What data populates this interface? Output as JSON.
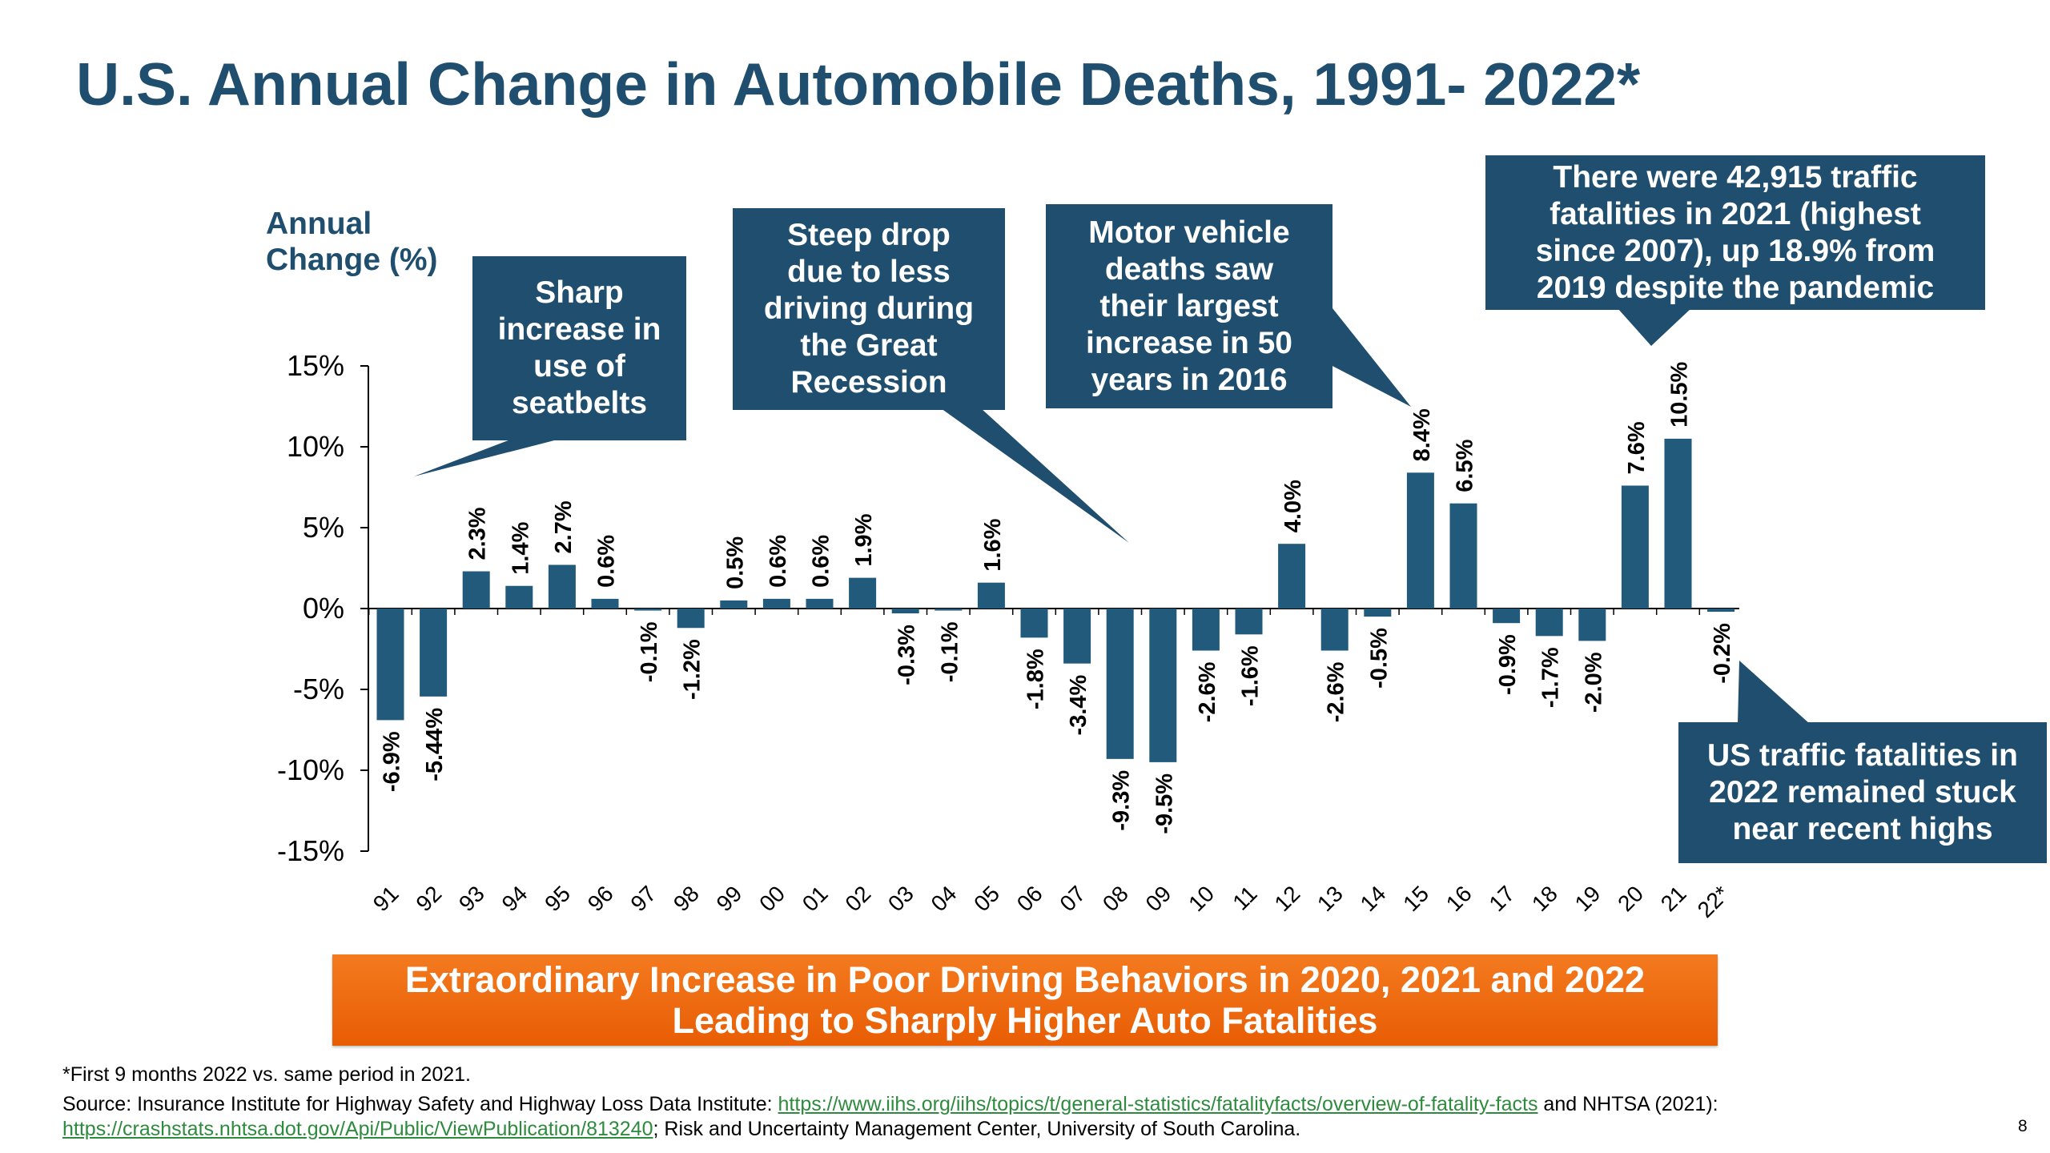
{
  "title": "U.S. Annual Change in Automobile Deaths, 1991- 2022*",
  "chart_data": {
    "type": "bar",
    "ylabel": "Annual Change (%)",
    "ylabel_lines": [
      "Annual",
      "Change (%)"
    ],
    "ylim": [
      -15,
      15
    ],
    "yticks": [
      15,
      10,
      5,
      0,
      -5,
      -10,
      -15
    ],
    "ytick_labels": [
      "15%",
      "10%",
      "5%",
      "0%",
      "-5%",
      "-10%",
      "-15%"
    ],
    "categories": [
      "91",
      "92",
      "93",
      "94",
      "95",
      "96",
      "97",
      "98",
      "99",
      "00",
      "01",
      "02",
      "03",
      "04",
      "05",
      "06",
      "07",
      "08",
      "09",
      "10",
      "11",
      "12",
      "13",
      "14",
      "15",
      "16",
      "17",
      "18",
      "19",
      "20",
      "21",
      "22*"
    ],
    "values": [
      -6.9,
      -5.44,
      2.3,
      1.4,
      2.7,
      0.6,
      -0.1,
      -1.2,
      0.5,
      0.6,
      0.6,
      1.9,
      -0.3,
      -0.1,
      1.6,
      -1.8,
      -3.4,
      -9.3,
      -9.5,
      -2.6,
      -1.6,
      4.0,
      -2.6,
      -0.5,
      8.4,
      6.5,
      -0.9,
      -1.7,
      -2.0,
      7.6,
      10.5,
      -0.2
    ],
    "data_labels": [
      "-6.9%",
      "-5.44%",
      "2.3%",
      "1.4%",
      "2.7%",
      "0.6%",
      "-0.1%",
      "-1.2%",
      "0.5%",
      "0.6%",
      "0.6%",
      "1.9%",
      "-0.3%",
      "-0.1%",
      "1.6%",
      "-1.8%",
      "-3.4%",
      "-9.3%",
      "-9.5%",
      "-2.6%",
      "-1.6%",
      "4.0%",
      "-2.6%",
      "-0.5%",
      "8.4%",
      "6.5%",
      "-0.9%",
      "-1.7%",
      "-2.0%",
      "7.6%",
      "10.5%",
      "-0.2%"
    ],
    "bar_color": "#215a7a",
    "grid": false
  },
  "callouts": [
    {
      "id": "seatbelts",
      "lines": [
        "Sharp",
        "increase in",
        "use of",
        "seatbelts"
      ]
    },
    {
      "id": "recession",
      "lines": [
        "Steep drop",
        "due to less",
        "driving during",
        "the Great",
        "Recession"
      ]
    },
    {
      "id": "2016",
      "lines": [
        "Motor vehicle",
        "deaths saw",
        "their largest",
        "increase in 50",
        "years in 2016"
      ]
    },
    {
      "id": "2021",
      "lines": [
        "There were 42,915 traffic",
        "fatalities in 2021 (highest",
        "since 2007), up 18.9% from",
        "2019 despite the pandemic"
      ]
    },
    {
      "id": "2022",
      "lines": [
        "US traffic fatalities in",
        "2022 remained stuck",
        "near recent highs"
      ]
    }
  ],
  "callout_color": "#1f4e6e",
  "banner": {
    "line1": "Extraordinary Increase in Poor Driving Behaviors in 2020, 2021 and 2022",
    "line2": "Leading to Sharply Higher Auto Fatalities",
    "color": "#f07016"
  },
  "footnote": "*First 9 months 2022 vs. same period in 2021.",
  "source": {
    "prefix": "Source: Insurance Institute for Highway Safety and Highway Loss Data Institute: ",
    "link1": "https://www.iihs.org/iihs/topics/t/general-statistics/fatalityfacts/overview-of-fatality-facts",
    "middle": " and NHTSA (2021): ",
    "link2": "https://crashstats.nhtsa.dot.gov/Api/Public/ViewPublication/813240",
    "suffix": "; Risk and Uncertainty Management Center, University of South Carolina."
  },
  "page_number": "8"
}
